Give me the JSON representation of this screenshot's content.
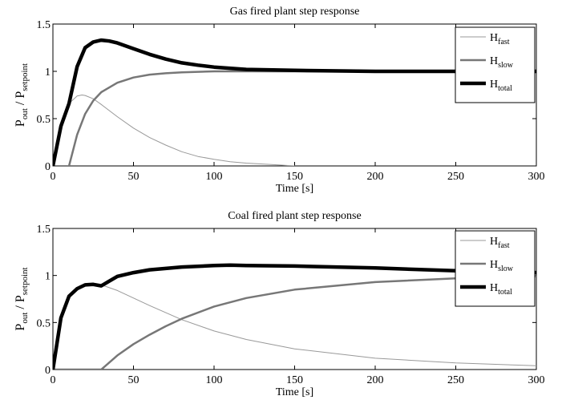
{
  "chart_data": [
    {
      "type": "line",
      "title": "Gas fired plant step response",
      "xlabel": "Time [s]",
      "ylabel": {
        "main1": "P",
        "sub1": "out",
        "sep": " / ",
        "main2": "P",
        "sub2": "setpoint"
      },
      "xlim": [
        0,
        300
      ],
      "ylim": [
        0,
        1.5
      ],
      "xticks": [
        0,
        50,
        100,
        150,
        200,
        250,
        300
      ],
      "yticks": [
        0,
        0.5,
        1,
        1.5
      ],
      "xtick_labels": [
        "0",
        "50",
        "100",
        "150",
        "200",
        "250",
        "300"
      ],
      "ytick_labels": [
        "0",
        "0.5",
        "1",
        "1.5"
      ],
      "grid": false,
      "legend_position": "top-right",
      "series": [
        {
          "name": "H",
          "name_sub": "fast",
          "color": "#999999",
          "width": "thin",
          "x": [
            0,
            5,
            10,
            15,
            18,
            20,
            25,
            30,
            40,
            50,
            60,
            70,
            80,
            90,
            100,
            110,
            120,
            130,
            140,
            150
          ],
          "y": [
            0,
            0.42,
            0.66,
            0.74,
            0.75,
            0.745,
            0.71,
            0.65,
            0.52,
            0.4,
            0.3,
            0.22,
            0.15,
            0.1,
            0.07,
            0.045,
            0.03,
            0.02,
            0.01,
            0.0
          ]
        },
        {
          "name": "H",
          "name_sub": "slow",
          "color": "#777777",
          "width": "medium",
          "x": [
            10,
            15,
            20,
            25,
            30,
            40,
            50,
            60,
            70,
            80,
            90,
            100,
            120,
            150,
            200,
            250,
            300
          ],
          "y": [
            0,
            0.33,
            0.55,
            0.69,
            0.78,
            0.88,
            0.935,
            0.965,
            0.98,
            0.99,
            0.995,
            1.0,
            1.0,
            1.0,
            1.0,
            1.0,
            1.0
          ]
        },
        {
          "name": "H",
          "name_sub": "total",
          "color": "#000000",
          "width": "thick",
          "x": [
            0,
            5,
            10,
            15,
            20,
            25,
            30,
            35,
            40,
            50,
            60,
            70,
            80,
            90,
            100,
            120,
            150,
            200,
            250,
            300
          ],
          "y": [
            0,
            0.42,
            0.66,
            1.05,
            1.25,
            1.31,
            1.33,
            1.32,
            1.3,
            1.24,
            1.18,
            1.13,
            1.09,
            1.065,
            1.045,
            1.02,
            1.01,
            1.0,
            1.0,
            1.0
          ]
        }
      ]
    },
    {
      "type": "line",
      "title": "Coal fired plant step response",
      "xlabel": "Time [s]",
      "ylabel": {
        "main1": "P",
        "sub1": "out",
        "sep": " / ",
        "main2": "P",
        "sub2": "setpoint"
      },
      "xlim": [
        0,
        300
      ],
      "ylim": [
        0,
        1.5
      ],
      "xticks": [
        0,
        50,
        100,
        150,
        200,
        250,
        300
      ],
      "yticks": [
        0,
        0.5,
        1,
        1.5
      ],
      "xtick_labels": [
        "0",
        "50",
        "100",
        "150",
        "200",
        "250",
        "300"
      ],
      "ytick_labels": [
        "0",
        "0.5",
        "1",
        "1.5"
      ],
      "grid": false,
      "legend_position": "top-right",
      "series": [
        {
          "name": "H",
          "name_sub": "fast",
          "color": "#999999",
          "width": "thin",
          "x": [
            0,
            5,
            10,
            15,
            20,
            25,
            30,
            40,
            50,
            60,
            80,
            100,
            120,
            150,
            200,
            250,
            300
          ],
          "y": [
            0,
            0.55,
            0.78,
            0.86,
            0.9,
            0.905,
            0.9,
            0.84,
            0.76,
            0.68,
            0.53,
            0.41,
            0.32,
            0.22,
            0.12,
            0.07,
            0.04
          ]
        },
        {
          "name": "H",
          "name_sub": "slow",
          "color": "#777777",
          "width": "medium",
          "x": [
            0,
            30,
            40,
            50,
            60,
            70,
            80,
            100,
            120,
            150,
            200,
            250,
            300
          ],
          "y": [
            0,
            0,
            0.15,
            0.27,
            0.37,
            0.46,
            0.54,
            0.67,
            0.76,
            0.85,
            0.93,
            0.97,
            0.99
          ]
        },
        {
          "name": "H",
          "name_sub": "total",
          "color": "#000000",
          "width": "thick",
          "x": [
            0,
            5,
            10,
            15,
            20,
            25,
            30,
            35,
            40,
            50,
            60,
            80,
            100,
            110,
            120,
            150,
            200,
            250,
            300
          ],
          "y": [
            0,
            0.55,
            0.78,
            0.86,
            0.9,
            0.905,
            0.89,
            0.94,
            0.99,
            1.03,
            1.06,
            1.09,
            1.105,
            1.11,
            1.105,
            1.1,
            1.08,
            1.05,
            1.03
          ]
        }
      ]
    }
  ]
}
